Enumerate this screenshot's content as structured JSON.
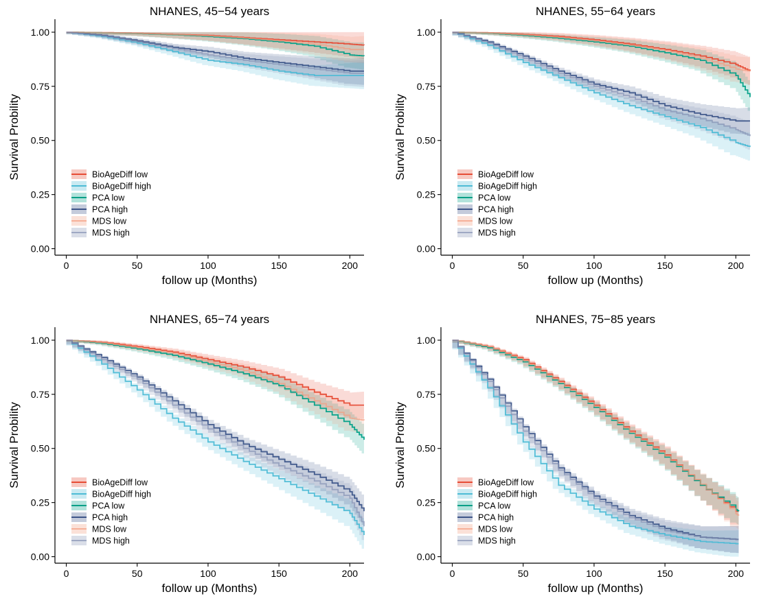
{
  "chart_data": [
    {
      "type": "line",
      "title": "NHANES, 45−54 years",
      "xlabel": "follow up (Months)",
      "ylabel": "Survival Probility",
      "xlim": [
        -8,
        210
      ],
      "ylim": [
        -0.03,
        1.06
      ],
      "x_ticks": [
        0,
        50,
        100,
        150,
        200
      ],
      "x_tick_labels": [
        "0",
        "50",
        "100",
        "150",
        "200"
      ],
      "y_ticks": [
        0,
        0.25,
        0.5,
        0.75,
        1
      ],
      "y_tick_labels": [
        "0.00",
        "0.25",
        "0.50",
        "0.75",
        "1.00"
      ],
      "legend": "bottom-left",
      "grid": false,
      "x": [
        0,
        25,
        50,
        75,
        100,
        125,
        150,
        175,
        200,
        210
      ],
      "series": [
        {
          "name": "BioAgeDiff low",
          "color": "#E64B35",
          "values": [
            1.0,
            0.998,
            0.995,
            0.99,
            0.985,
            0.975,
            0.965,
            0.955,
            0.945,
            0.94
          ]
        },
        {
          "name": "BioAgeDiff high",
          "color": "#4DBBD5",
          "values": [
            1.0,
            0.98,
            0.95,
            0.91,
            0.87,
            0.85,
            0.82,
            0.8,
            0.8,
            0.8
          ]
        },
        {
          "name": "PCA low",
          "color": "#00A087",
          "values": [
            1.0,
            0.997,
            0.993,
            0.988,
            0.98,
            0.97,
            0.955,
            0.935,
            0.895,
            0.89
          ]
        },
        {
          "name": "PCA high",
          "color": "#3C5488",
          "values": [
            1.0,
            0.985,
            0.96,
            0.93,
            0.91,
            0.88,
            0.86,
            0.84,
            0.82,
            0.82
          ]
        },
        {
          "name": "MDS low",
          "color": "#F39B7F",
          "values": [
            1.0,
            0.997,
            0.994,
            0.989,
            0.983,
            0.973,
            0.96,
            0.945,
            0.92,
            0.92
          ]
        },
        {
          "name": "MDS high",
          "color": "#8491B4",
          "values": [
            1.0,
            0.983,
            0.955,
            0.925,
            0.895,
            0.87,
            0.85,
            0.83,
            0.81,
            0.81
          ]
        }
      ]
    },
    {
      "type": "line",
      "title": "NHANES, 55−64 years",
      "xlabel": "follow up (Months)",
      "ylabel": "Survival Probility",
      "xlim": [
        -8,
        210
      ],
      "ylim": [
        -0.03,
        1.06
      ],
      "x_ticks": [
        0,
        50,
        100,
        150,
        200
      ],
      "x_tick_labels": [
        "0",
        "50",
        "100",
        "150",
        "200"
      ],
      "y_ticks": [
        0,
        0.25,
        0.5,
        0.75,
        1
      ],
      "y_tick_labels": [
        "0.00",
        "0.25",
        "0.50",
        "0.75",
        "1.00"
      ],
      "legend": "bottom-left",
      "grid": false,
      "x": [
        0,
        25,
        50,
        75,
        100,
        125,
        150,
        175,
        200,
        210
      ],
      "series": [
        {
          "name": "BioAgeDiff low",
          "color": "#E64B35",
          "values": [
            1.0,
            0.997,
            0.99,
            0.98,
            0.965,
            0.945,
            0.92,
            0.89,
            0.85,
            0.82
          ]
        },
        {
          "name": "BioAgeDiff high",
          "color": "#4DBBD5",
          "values": [
            1.0,
            0.94,
            0.86,
            0.79,
            0.72,
            0.66,
            0.61,
            0.56,
            0.49,
            0.47
          ]
        },
        {
          "name": "PCA low",
          "color": "#00A087",
          "values": [
            1.0,
            0.995,
            0.985,
            0.972,
            0.955,
            0.935,
            0.905,
            0.87,
            0.8,
            0.7
          ]
        },
        {
          "name": "PCA high",
          "color": "#3C5488",
          "values": [
            1.0,
            0.955,
            0.89,
            0.82,
            0.76,
            0.72,
            0.66,
            0.62,
            0.59,
            0.59
          ]
        },
        {
          "name": "MDS low",
          "color": "#F39B7F",
          "values": [
            1.0,
            0.996,
            0.988,
            0.976,
            0.96,
            0.94,
            0.915,
            0.88,
            0.83,
            0.82
          ]
        },
        {
          "name": "MDS high",
          "color": "#8491B4",
          "values": [
            1.0,
            0.95,
            0.88,
            0.81,
            0.75,
            0.7,
            0.64,
            0.6,
            0.55,
            0.52
          ]
        }
      ]
    },
    {
      "type": "line",
      "title": "NHANES, 65−74 years",
      "xlabel": "follow up (Months)",
      "ylabel": "Survival Probility",
      "xlim": [
        -8,
        210
      ],
      "ylim": [
        -0.03,
        1.06
      ],
      "x_ticks": [
        0,
        50,
        100,
        150,
        200
      ],
      "x_tick_labels": [
        "0",
        "50",
        "100",
        "150",
        "200"
      ],
      "y_ticks": [
        0,
        0.25,
        0.5,
        0.75,
        1
      ],
      "y_tick_labels": [
        "0.00",
        "0.25",
        "0.50",
        "0.75",
        "1.00"
      ],
      "legend": "bottom-left",
      "grid": false,
      "x": [
        0,
        25,
        50,
        75,
        100,
        125,
        150,
        175,
        200,
        210
      ],
      "series": [
        {
          "name": "BioAgeDiff low",
          "color": "#E64B35",
          "values": [
            1.0,
            0.99,
            0.97,
            0.945,
            0.91,
            0.875,
            0.83,
            0.76,
            0.7,
            0.7
          ]
        },
        {
          "name": "BioAgeDiff high",
          "color": "#4DBBD5",
          "values": [
            1.0,
            0.89,
            0.77,
            0.64,
            0.53,
            0.44,
            0.36,
            0.28,
            0.2,
            0.1
          ]
        },
        {
          "name": "PCA low",
          "color": "#00A087",
          "values": [
            1.0,
            0.985,
            0.96,
            0.93,
            0.89,
            0.845,
            0.79,
            0.7,
            0.61,
            0.54
          ]
        },
        {
          "name": "PCA high",
          "color": "#3C5488",
          "values": [
            1.0,
            0.92,
            0.83,
            0.72,
            0.61,
            0.52,
            0.45,
            0.38,
            0.3,
            0.21
          ]
        },
        {
          "name": "MDS low",
          "color": "#F39B7F",
          "values": [
            1.0,
            0.988,
            0.965,
            0.94,
            0.9,
            0.86,
            0.8,
            0.72,
            0.64,
            0.63
          ]
        },
        {
          "name": "MDS high",
          "color": "#8491B4",
          "values": [
            1.0,
            0.91,
            0.82,
            0.7,
            0.59,
            0.5,
            0.42,
            0.35,
            0.27,
            0.14
          ]
        }
      ]
    },
    {
      "type": "line",
      "title": "NHANES, 75−85 years",
      "xlabel": "follow up (Months)",
      "ylabel": "Survival Probility",
      "xlim": [
        -8,
        210
      ],
      "ylim": [
        -0.03,
        1.06
      ],
      "x_ticks": [
        0,
        50,
        100,
        150,
        200
      ],
      "x_tick_labels": [
        "0",
        "50",
        "100",
        "150",
        "200"
      ],
      "y_ticks": [
        0,
        0.25,
        0.5,
        0.75,
        1
      ],
      "y_tick_labels": [
        "0.00",
        "0.25",
        "0.50",
        "0.75",
        "1.00"
      ],
      "legend": "bottom-left",
      "grid": false,
      "x": [
        0,
        25,
        50,
        75,
        100,
        125,
        150,
        175,
        200,
        202
      ],
      "series": [
        {
          "name": "BioAgeDiff low",
          "color": "#E64B35",
          "values": [
            1.0,
            0.97,
            0.91,
            0.81,
            0.7,
            0.58,
            0.47,
            0.33,
            0.21,
            0.21
          ]
        },
        {
          "name": "BioAgeDiff high",
          "color": "#4DBBD5",
          "values": [
            1.0,
            0.78,
            0.53,
            0.33,
            0.22,
            0.14,
            0.1,
            0.07,
            0.06,
            0.06
          ]
        },
        {
          "name": "PCA low",
          "color": "#00A087",
          "values": [
            1.0,
            0.965,
            0.9,
            0.8,
            0.69,
            0.57,
            0.46,
            0.33,
            0.22,
            0.21
          ]
        },
        {
          "name": "PCA high",
          "color": "#3C5488",
          "values": [
            1.0,
            0.82,
            0.6,
            0.41,
            0.28,
            0.19,
            0.13,
            0.09,
            0.08,
            0.08
          ]
        },
        {
          "name": "MDS low",
          "color": "#F39B7F",
          "values": [
            1.0,
            0.97,
            0.905,
            0.805,
            0.695,
            0.575,
            0.465,
            0.335,
            0.2,
            0.19
          ]
        },
        {
          "name": "MDS high",
          "color": "#8491B4",
          "values": [
            1.0,
            0.81,
            0.58,
            0.4,
            0.27,
            0.18,
            0.12,
            0.09,
            0.08,
            0.08
          ]
        }
      ]
    }
  ]
}
